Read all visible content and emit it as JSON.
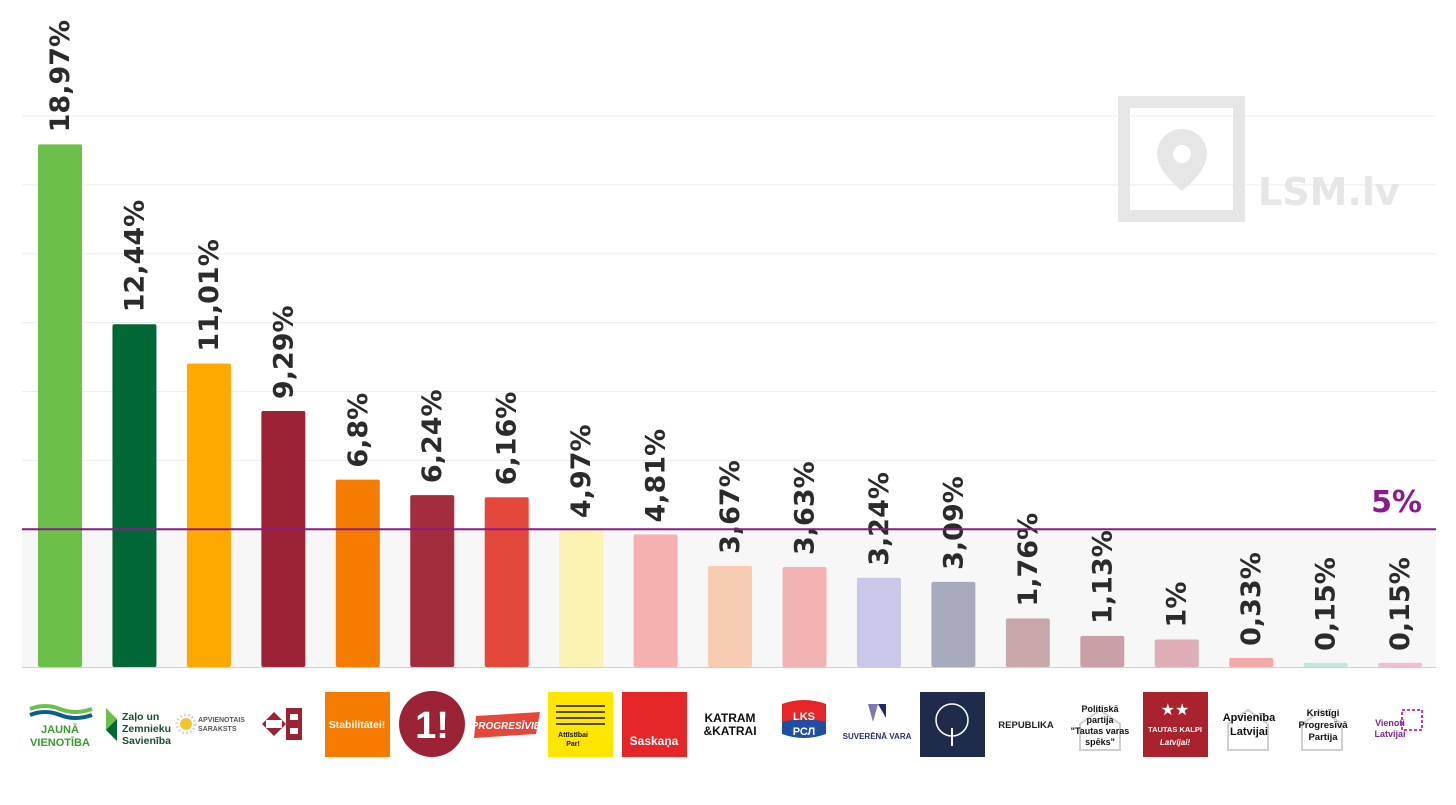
{
  "chart_data": {
    "type": "bar",
    "categories": [
      "JAUNĀ VIENOTĪBA",
      "Zaļo un Zemnieku Savienība",
      "APVIENOTAIS SARAKSTS",
      "Nacionālā apvienība",
      "Stabilitātei!",
      "Latvija pirmajā vietā",
      "PROGRESĪVIE",
      "Attīstībai/Par!",
      "Saskaņa",
      "KATRAM & KATRAI",
      "LKS РСЛ",
      "SUVERĒNĀ VARA",
      "Latvijas Zaļā partija",
      "REPUBLIKA",
      "Politiskā partija \"Tautas varas spēks\"",
      "TAUTAS KALPI Latvijai!",
      "Apvienība Latvijai",
      "Kristīgi Progresīvā Partija",
      "Vienoti Latvijai"
    ],
    "values": [
      18.97,
      12.44,
      11.01,
      9.29,
      6.8,
      6.24,
      6.16,
      4.97,
      4.81,
      3.67,
      3.63,
      3.24,
      3.09,
      1.76,
      1.13,
      1.0,
      0.33,
      0.15,
      0.15
    ],
    "value_labels": [
      "18,97%",
      "12,44%",
      "11,01%",
      "9,29%",
      "6,8%",
      "6,24%",
      "6,16%",
      "4,97%",
      "4,81%",
      "3,67%",
      "3,63%",
      "3,24%",
      "3,09%",
      "1,76%",
      "1,13%",
      "1%",
      "0,33%",
      "0,15%",
      "0,15%"
    ],
    "colors": [
      "#6cc04a",
      "#006837",
      "#ffa800",
      "#9b2335",
      "#f57c00",
      "#a32d3c",
      "#e4483a",
      "#fbf3b2",
      "#f7b0b0",
      "#f8cbb3",
      "#f4b3b3",
      "#c9c8e8",
      "#a8aabe",
      "#c9a8ab",
      "#c9a0a6",
      "#deadb5",
      "#f0a8a8",
      "#bfe8e0",
      "#f4bcd2"
    ],
    "threshold": {
      "value": 5,
      "label": "5%",
      "color": "#8b1a8b"
    },
    "ylim": [
      0,
      20
    ],
    "grid": true,
    "title": "",
    "xlabel": "",
    "ylabel": ""
  },
  "logos": {
    "l0": [
      "JAUNĀ",
      "VIENOTĪBA"
    ],
    "l1": [
      "Zaļo un",
      "Zemnieku",
      "Savienība"
    ],
    "l2": [
      "APVIENOTAIS",
      "SARAKSTS"
    ],
    "l4": [
      "Stabilitātei!"
    ],
    "l5": [
      "1!"
    ],
    "l6": [
      "PROGRESĪVIE"
    ],
    "l7": [
      "Attīstībai",
      "Par!"
    ],
    "l8": [
      "Saskaņa"
    ],
    "l9": [
      "KATRAM",
      "&KATRAI"
    ],
    "l10": [
      "LKS",
      "РСЛ"
    ],
    "l11": [
      "SUVERĒNĀ VARA"
    ],
    "l13": [
      "REPUBLIKA"
    ],
    "l14": [
      "Politiskā",
      "partija",
      "\"Tautas varas",
      "spēks\""
    ],
    "l15": [
      "TAUTAS KALPI",
      "Latvijai!"
    ],
    "l16": [
      "Apvienība",
      "Latvijai"
    ],
    "l17": [
      "Kristīgi",
      "Progresīvā",
      "Partija"
    ],
    "l18": [
      "Vienoti",
      "Latvijai"
    ]
  },
  "watermark": {
    "text": "LSM.lv"
  }
}
